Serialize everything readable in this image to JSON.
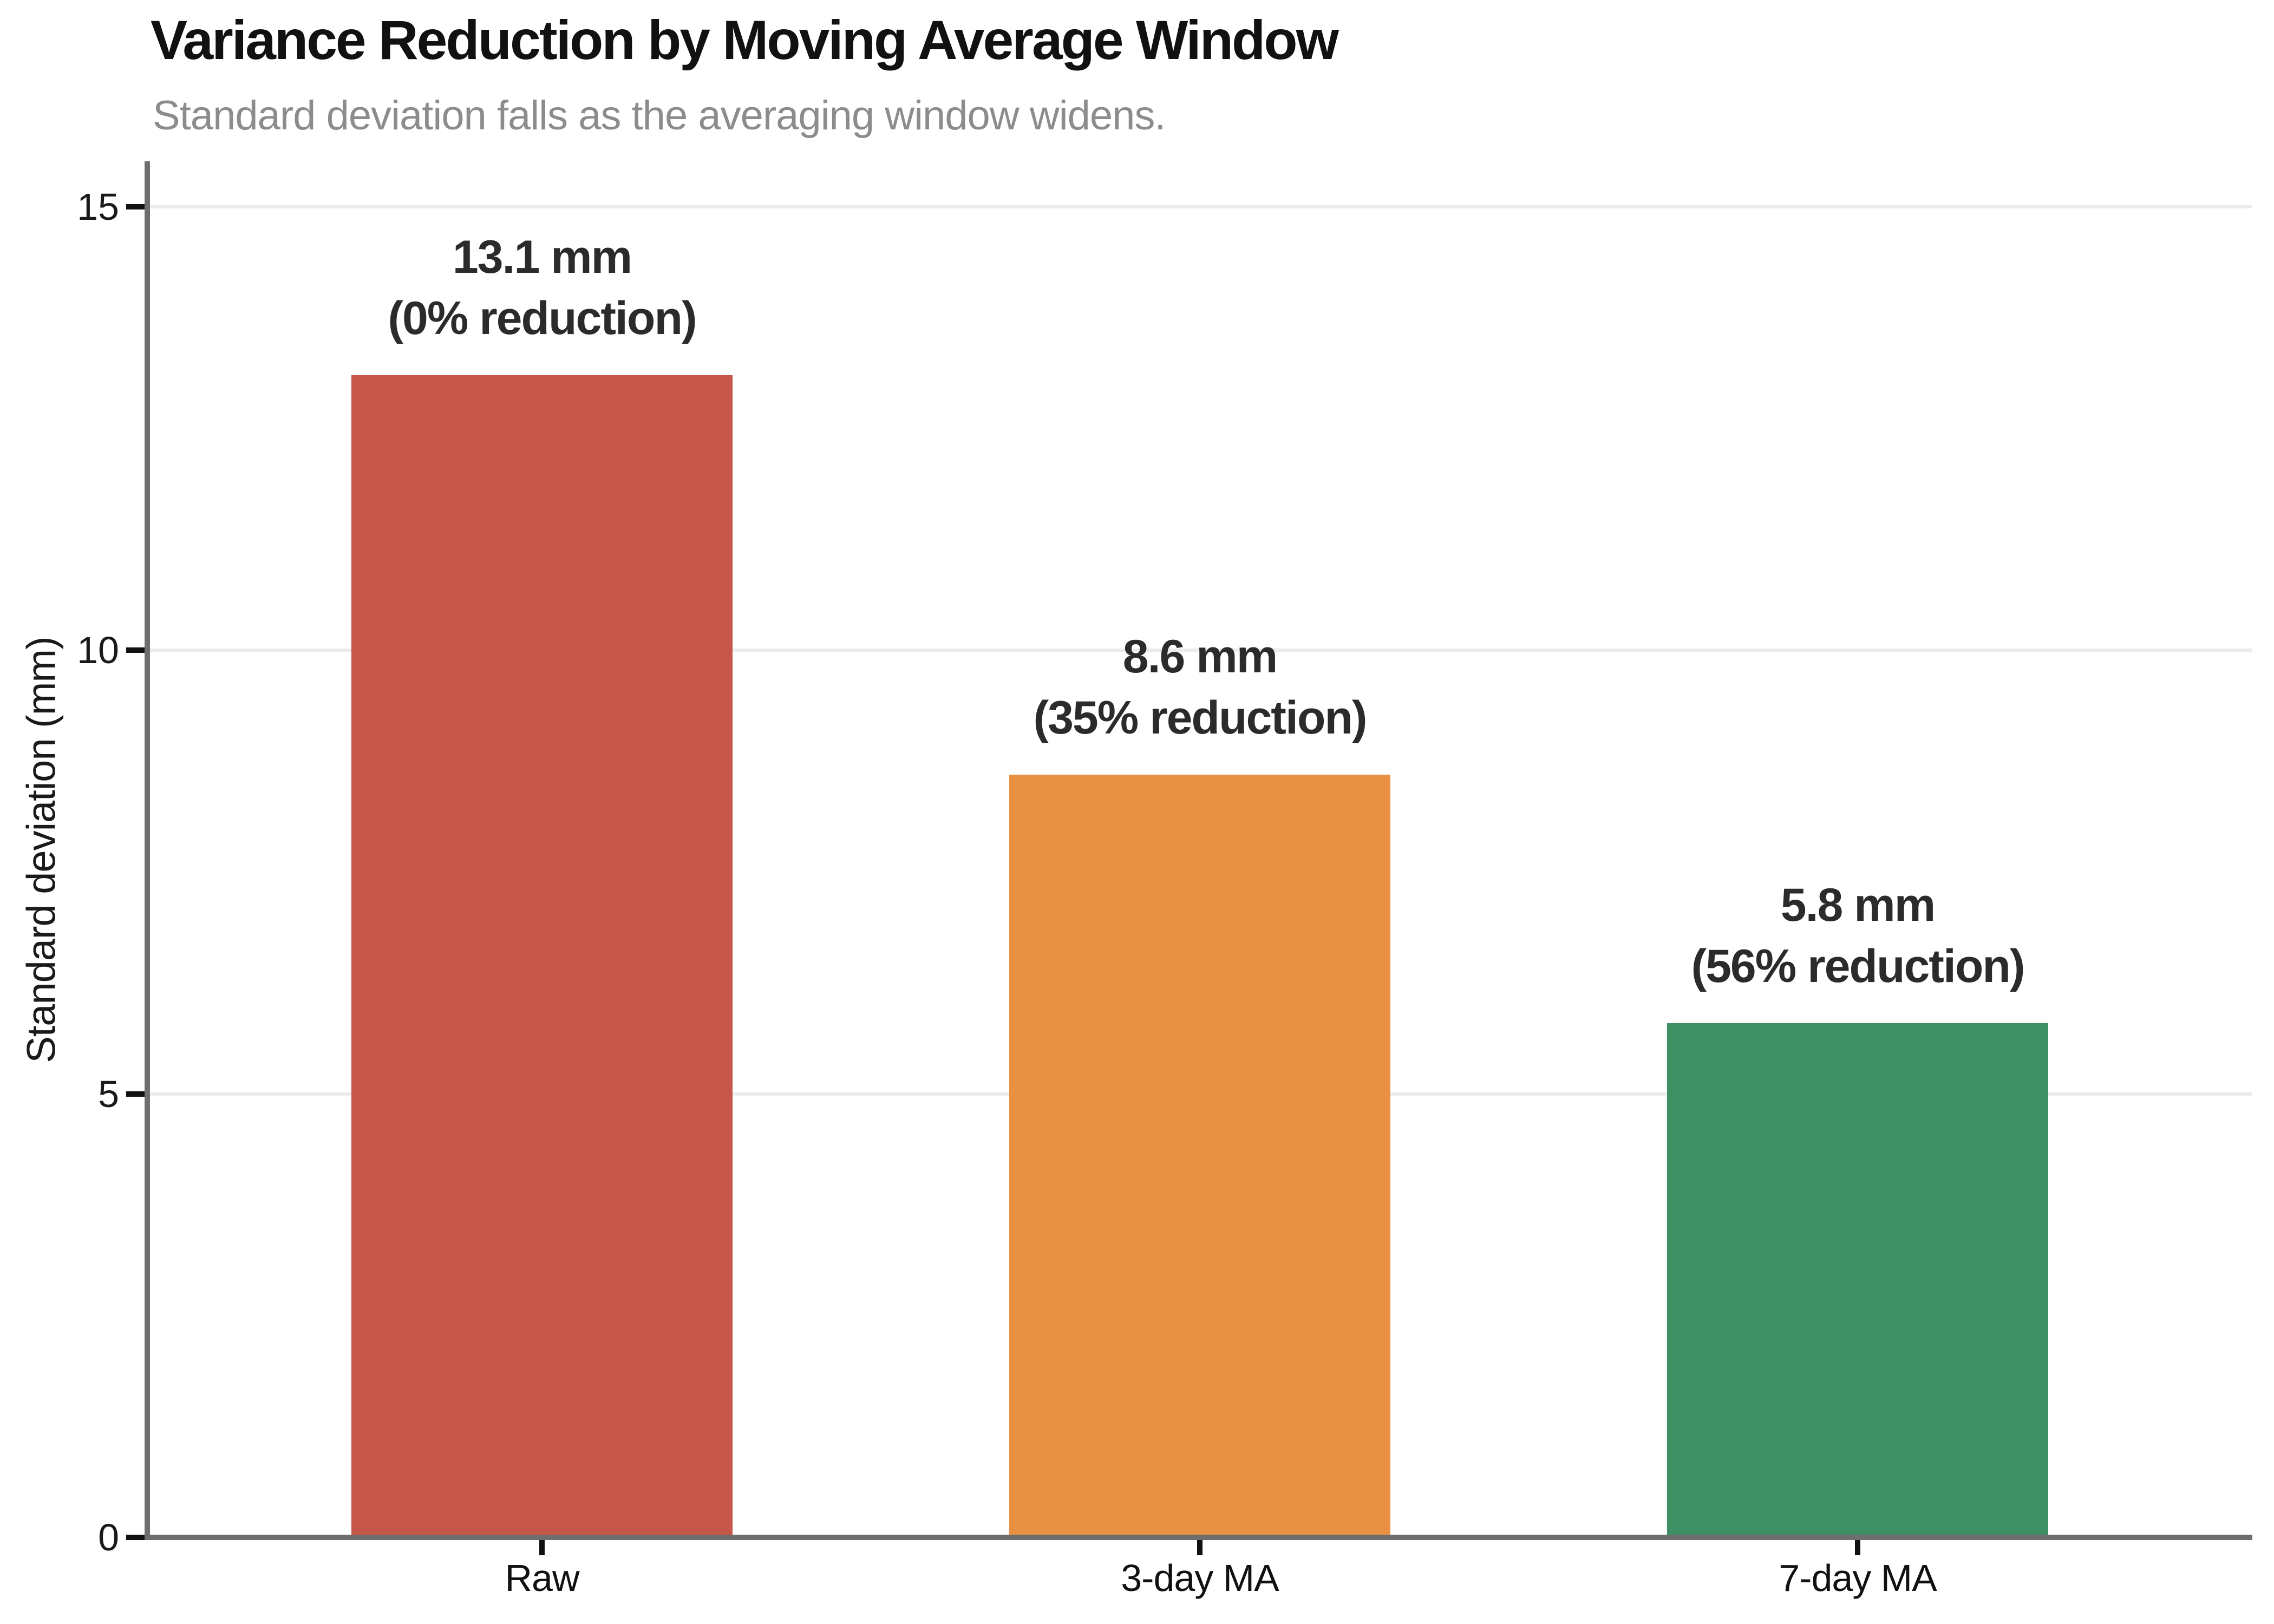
{
  "chart_data": {
    "type": "bar",
    "title": "Variance Reduction by Moving Average Window",
    "subtitle": "Standard deviation falls as the averaging window widens.",
    "xlabel": "",
    "ylabel": "Standard deviation (mm)",
    "categories": [
      "Raw",
      "3-day MA",
      "7-day MA"
    ],
    "values": [
      13.1,
      8.6,
      5.8
    ],
    "value_unit": "mm",
    "reduction_pct": [
      0,
      35,
      56
    ],
    "bar_labels": [
      {
        "line1": "13.1 mm",
        "line2": "(0% reduction)"
      },
      {
        "line1": "8.6 mm",
        "line2": "(35% reduction)"
      },
      {
        "line1": "5.8 mm",
        "line2": "(56% reduction)"
      }
    ],
    "bar_colors": [
      "#c65648",
      "#e89143",
      "#3c9064"
    ],
    "yticks": [
      0,
      5,
      10,
      15
    ],
    "gridlines_at": [
      5,
      10,
      15
    ],
    "ylim": [
      0,
      15.5
    ],
    "xlim": [
      -0.6,
      2.6
    ],
    "bar_width": 0.58,
    "grid": true,
    "legend": "none",
    "colors": {
      "title": "#111111",
      "subtitle": "#8c8c8c",
      "axis_spine": "#6e6e6e",
      "tick": "#111111",
      "gridline": "#ececec",
      "value_label": "#2b2b2b",
      "background": "#ffffff"
    }
  }
}
